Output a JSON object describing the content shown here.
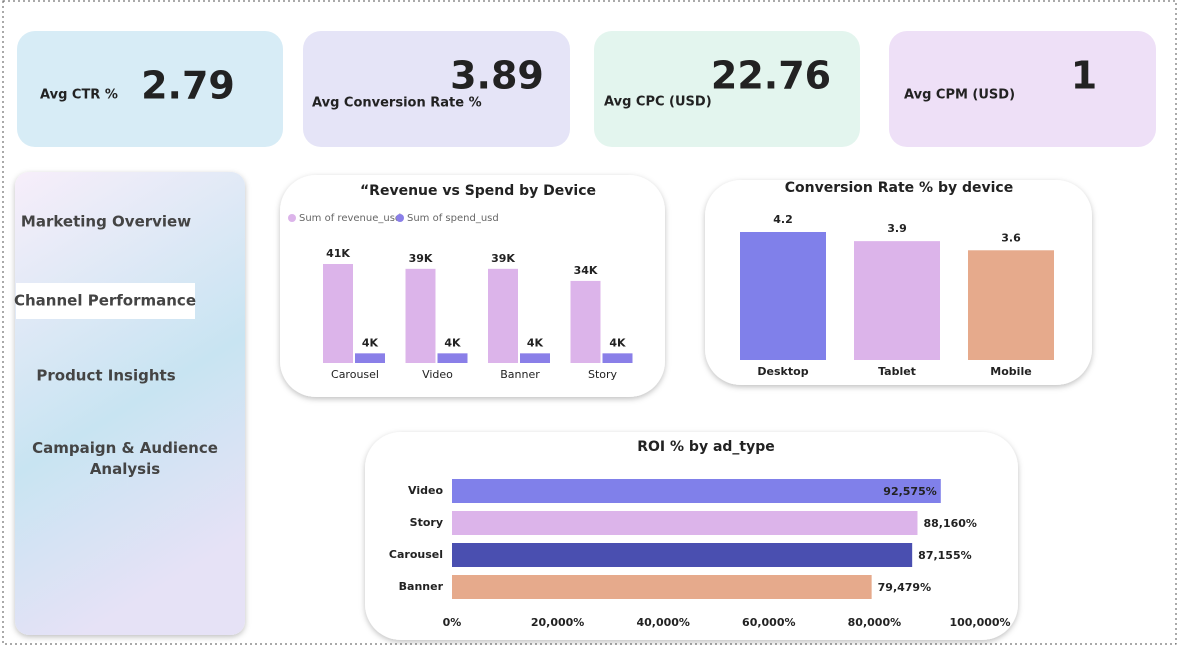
{
  "kpis": [
    {
      "label": "Avg CTR %",
      "value": 2.79
    },
    {
      "label": "Avg Conversion Rate %",
      "value": 3.89
    },
    {
      "label": "Avg CPC (USD)",
      "value": 22.76
    },
    {
      "label": "Avg CPM (USD)",
      "value": 1
    }
  ],
  "nav": [
    "Marketing Overview",
    "Channel Performance",
    "Product Insights",
    "Campaign & Audience Analysis"
  ],
  "chart_data": [
    {
      "type": "bar",
      "title": "“Revenue vs Spend by Device",
      "categories": [
        "Carousel",
        "Video",
        "Banner",
        "Story"
      ],
      "series": [
        {
          "name": "Sum of revenue_usd",
          "color": "#dcb4ea",
          "values": [
            41000,
            39000,
            39000,
            34000
          ],
          "value_labels": [
            "41K",
            "39K",
            "39K",
            "34K"
          ]
        },
        {
          "name": "Sum of spend_usd",
          "color": "#8a7fe8",
          "values": [
            4000,
            4000,
            4000,
            4000
          ],
          "value_labels": [
            "4K",
            "4K",
            "4K",
            "4K"
          ]
        }
      ]
    },
    {
      "type": "bar",
      "title": "Conversion Rate % by device",
      "categories": [
        "Desktop",
        "Tablet",
        "Mobile"
      ],
      "values": [
        4.2,
        3.9,
        3.6
      ],
      "colors": [
        "#8080ea",
        "#dcb4ea",
        "#e6aa8c"
      ]
    },
    {
      "type": "hbar",
      "title": "ROI % by ad_type",
      "categories": [
        "Video",
        "Story",
        "Carousel",
        "Banner"
      ],
      "values": [
        92575,
        88160,
        87155,
        79479
      ],
      "value_labels": [
        "92,575%",
        "88,160%",
        "87,155%",
        "79,479%"
      ],
      "colors": [
        "#8080ea",
        "#dcb4ea",
        "#4a4fb0",
        "#e6aa8c"
      ],
      "xlim": [
        0,
        100000
      ],
      "xticks": [
        {
          "value": 0,
          "label": "0%"
        },
        {
          "value": 20000,
          "label": "20,000%"
        },
        {
          "value": 40000,
          "label": "40,000%"
        },
        {
          "value": 60000,
          "label": "60,000%"
        },
        {
          "value": 80000,
          "label": "80,000%"
        },
        {
          "value": 100000,
          "label": "100,000%"
        }
      ]
    }
  ]
}
